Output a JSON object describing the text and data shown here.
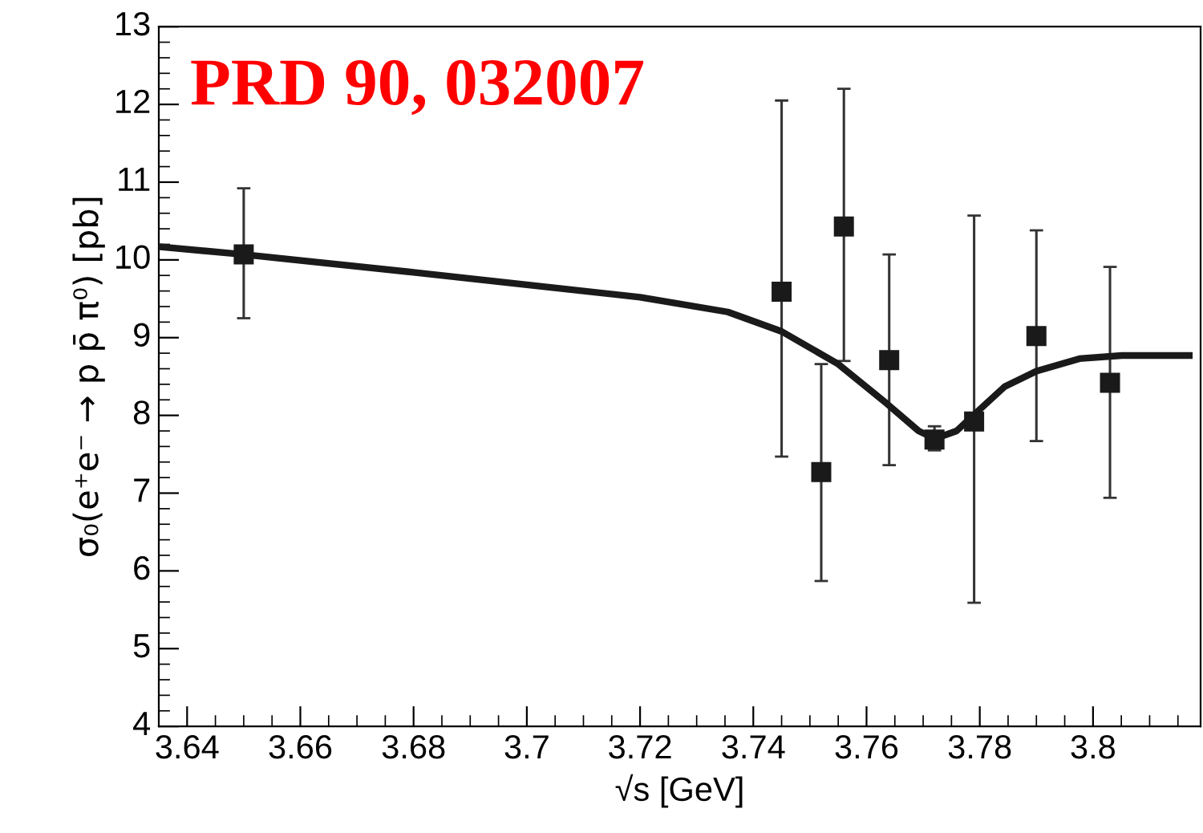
{
  "chart_data": {
    "type": "scatter",
    "xlabel": "√s [GeV]",
    "ylabel": "σ₀(e⁺e⁻ → p p̄ π⁰) [pb]",
    "annotations": [
      "PRD 90, 032007"
    ],
    "xlim": [
      3.635,
      3.819
    ],
    "xticks": [
      {
        "value": 3.64,
        "label": "3.64"
      },
      {
        "value": 3.66,
        "label": "3.66"
      },
      {
        "value": 3.68,
        "label": "3.68"
      },
      {
        "value": 3.7,
        "label": "3.7"
      },
      {
        "value": 3.72,
        "label": "3.72"
      },
      {
        "value": 3.74,
        "label": "3.74"
      },
      {
        "value": 3.76,
        "label": "3.76"
      },
      {
        "value": 3.78,
        "label": "3.78"
      },
      {
        "value": 3.8,
        "label": "3.8"
      }
    ],
    "ylim": [
      4,
      13
    ],
    "yticks": [
      4,
      5,
      6,
      7,
      8,
      9,
      10,
      11,
      12,
      13
    ],
    "grid": false,
    "legend": false,
    "series": [
      {
        "marker": "square",
        "color": "#1a1a1a",
        "x": [
          3.65,
          3.745,
          3.752,
          3.756,
          3.764,
          3.772,
          3.779,
          3.79,
          3.803
        ],
        "values": [
          10.07,
          9.59,
          7.27,
          10.43,
          8.71,
          7.69,
          7.92,
          9.02,
          8.42
        ],
        "errors": [
          [
            9.25,
            10.92
          ],
          [
            7.47,
            12.05
          ],
          [
            5.87,
            8.66
          ],
          [
            8.7,
            12.2
          ],
          [
            7.36,
            10.07
          ],
          [
            7.55,
            7.86
          ],
          [
            5.59,
            10.57
          ],
          [
            7.67,
            10.38
          ],
          [
            6.94,
            9.91
          ]
        ]
      },
      {
        "type": "line",
        "marker": "none",
        "line_style": "solid",
        "color": "#1a1a1a",
        "x": [
          3.635,
          3.65,
          3.68,
          3.7,
          3.72,
          3.7355,
          3.745,
          3.755,
          3.7636,
          3.7692,
          3.7721,
          3.7759,
          3.7796,
          3.7844,
          3.79,
          3.7976,
          3.8051,
          3.817
        ],
        "values": [
          10.17,
          10.07,
          9.84,
          9.68,
          9.52,
          9.33,
          9.08,
          8.66,
          8.15,
          7.8,
          7.7,
          7.8,
          8.05,
          8.37,
          8.57,
          8.73,
          8.77,
          8.77
        ]
      }
    ]
  }
}
